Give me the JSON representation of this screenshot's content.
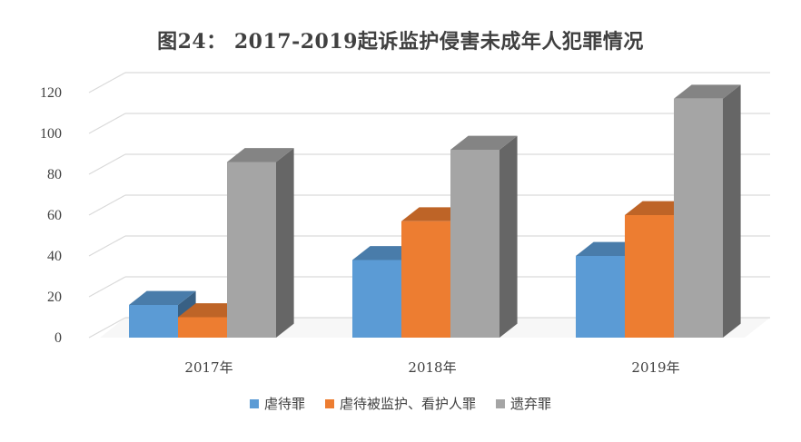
{
  "chart_data": {
    "type": "bar",
    "title": "图24：  2017-2019起诉监护侵害未成年人犯罪情况",
    "categories": [
      "2017年",
      "2018年",
      "2019年"
    ],
    "series": [
      {
        "name": "虐待罪",
        "values": [
          16,
          38,
          40
        ],
        "color": "#5B9BD5"
      },
      {
        "name": "虐待被监护、看护人罪",
        "values": [
          10,
          57,
          60
        ],
        "color": "#ED7D31"
      },
      {
        "name": "遗弃罪",
        "values": [
          86,
          92,
          117
        ],
        "color": "#A5A5A5"
      }
    ],
    "ylim": [
      0,
      120
    ],
    "yticks": [
      0,
      20,
      40,
      60,
      80,
      100,
      120
    ],
    "grid": true,
    "legend": "bottom",
    "xlabel": "",
    "ylabel": ""
  }
}
